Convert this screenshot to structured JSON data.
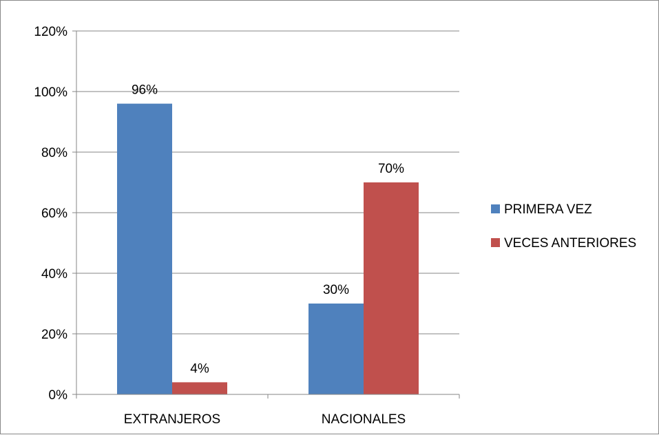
{
  "chart_data": {
    "type": "bar",
    "categories": [
      "EXTRANJEROS",
      "NACIONALES"
    ],
    "series": [
      {
        "name": "PRIMERA VEZ",
        "values": [
          96,
          30
        ],
        "labels": [
          "96%",
          "30%"
        ],
        "color": "#4F81BD"
      },
      {
        "name": "VECES ANTERIORES",
        "values": [
          4,
          70
        ],
        "labels": [
          "4%",
          "70%"
        ],
        "color": "#C0504D"
      }
    ],
    "title": "",
    "xlabel": "",
    "ylabel": "",
    "ylim": [
      0,
      120
    ],
    "yticks": [
      0,
      20,
      40,
      60,
      80,
      100,
      120
    ],
    "ytick_labels": [
      "0%",
      "20%",
      "40%",
      "60%",
      "80%",
      "100%",
      "120%"
    ],
    "grid": true,
    "legend_position": "right"
  }
}
